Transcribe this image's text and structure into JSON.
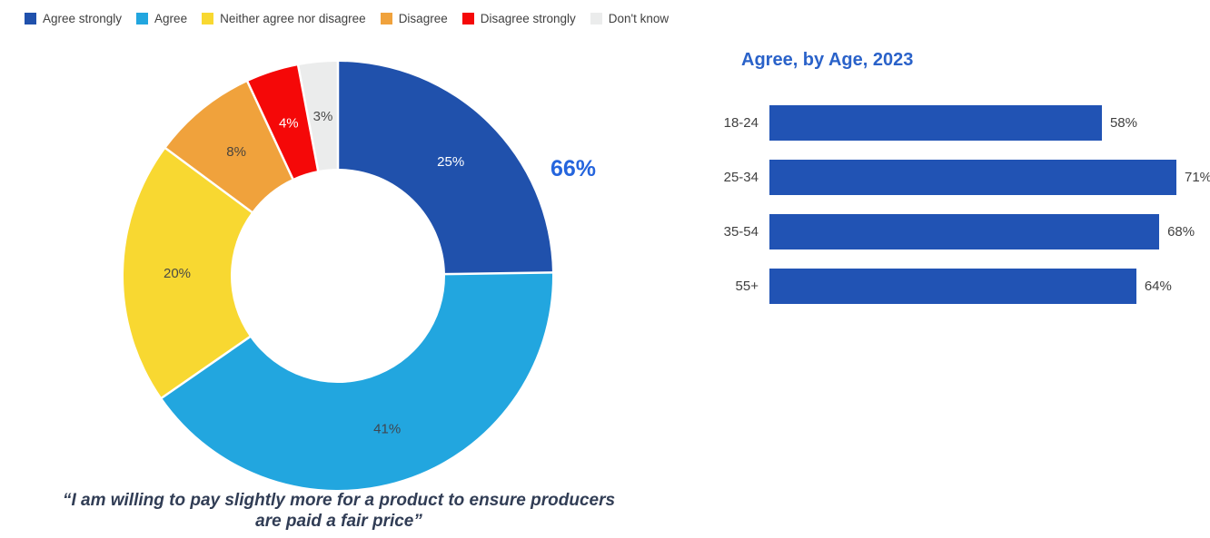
{
  "legend": {
    "items": [
      {
        "label": "Agree strongly",
        "color": "#2051AC"
      },
      {
        "label": "Agree",
        "color": "#22A6DF"
      },
      {
        "label": "Neither agree nor disagree",
        "color": "#F8D831"
      },
      {
        "label": "Disagree",
        "color": "#F0A23C"
      },
      {
        "label": "Disagree strongly",
        "color": "#F50808"
      },
      {
        "label": "Don't know",
        "color": "#EBECEC"
      }
    ]
  },
  "chart_data": [
    {
      "type": "pie",
      "subtype": "donut",
      "statement": "“I am willing to pay slightly more for a product to ensure producers are paid a fair price”",
      "categories": [
        "Agree strongly",
        "Agree",
        "Neither agree nor disagree",
        "Disagree",
        "Disagree strongly",
        "Don't know"
      ],
      "values": [
        25,
        41,
        20,
        8,
        4,
        3
      ],
      "data_labels": [
        "25%",
        "41%",
        "20%",
        "8%",
        "4%",
        "3%"
      ],
      "colors": [
        "#2051AC",
        "#22A6DF",
        "#F8D831",
        "#F0A23C",
        "#F50808",
        "#EBECEC"
      ],
      "label_colors": [
        "#ffffff",
        "#3F4650",
        "#4A4A44",
        "#4A443C",
        "#ffffff",
        "#4A4A4A"
      ],
      "start_position": "top",
      "direction": "clockwise",
      "callout": {
        "text": "66%",
        "color": "#2565DD"
      }
    },
    {
      "type": "bar",
      "orientation": "horizontal",
      "title": "Agree, by Age, 2023",
      "title_color": "#2A62C9",
      "categories": [
        "18-24",
        "25-34",
        "35-54",
        "55+"
      ],
      "values": [
        58,
        71,
        68,
        64
      ],
      "value_labels": [
        "58%",
        "71%",
        "68%",
        "64%"
      ],
      "bar_color": "#2153B4",
      "xlim": [
        0,
        80
      ],
      "grid": "off",
      "axis": "hidden"
    }
  ]
}
